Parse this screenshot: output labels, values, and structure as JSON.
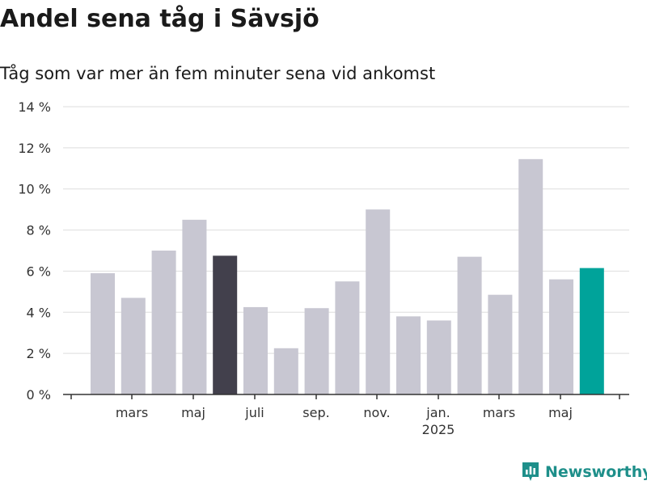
{
  "chart_data": {
    "type": "bar",
    "title": "Andel sena tåg i Sävsjö",
    "subtitle": "Tåg som var mer än fem minuter sena vid ankomst",
    "xlabel": "",
    "ylabel": "",
    "ylim": [
      0,
      14
    ],
    "y_ticks": [
      "0 %",
      "2 %",
      "4 %",
      "6 %",
      "8 %",
      "10 %",
      "12 %",
      "14 %"
    ],
    "x_tick_labels": [
      "",
      "mars",
      "maj",
      "juli",
      "sep.",
      "nov.",
      "jan.",
      "mars",
      "maj",
      ""
    ],
    "year_label": "2025",
    "grid": true,
    "values": [
      5.9,
      4.7,
      7.0,
      8.5,
      6.75,
      4.25,
      2.25,
      4.2,
      5.5,
      9.0,
      3.8,
      3.6,
      6.7,
      4.85,
      11.45,
      5.6,
      6.15
    ],
    "colors": {
      "default": "#c8c7d2",
      "highlight_dark": "#42404c",
      "highlight_teal": "#00a39a"
    },
    "highlight_dark_index": 4,
    "highlight_teal_index": 16
  },
  "brand": {
    "name": "Newsworthy",
    "icon": "newsworthy-logo-icon"
  }
}
